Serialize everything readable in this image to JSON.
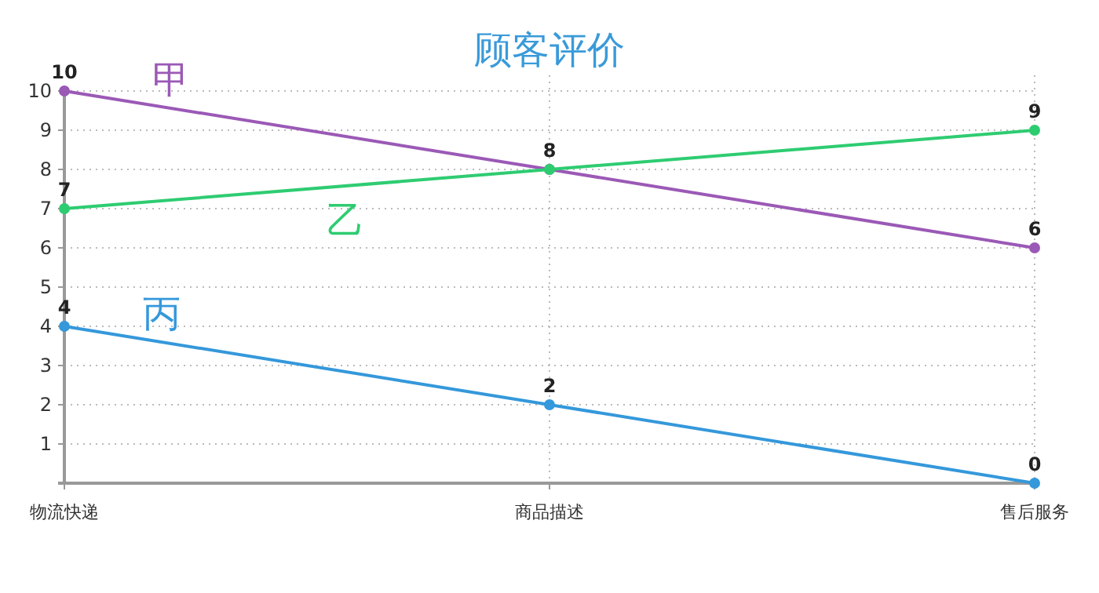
{
  "chart_data": {
    "type": "line",
    "title": "顾客评价",
    "categories": [
      "物流快递",
      "商品描述",
      "售后服务"
    ],
    "series": [
      {
        "name": "甲",
        "color": "#9b59b6",
        "values": [
          10,
          8,
          6
        ],
        "value_labels": [
          "10",
          "8",
          "6"
        ]
      },
      {
        "name": "乙",
        "color": "#2ecc71",
        "values": [
          7,
          8,
          9
        ],
        "value_labels": [
          "7",
          null,
          "9"
        ]
      },
      {
        "name": "丙",
        "color": "#3498db",
        "values": [
          4,
          2,
          0
        ],
        "value_labels": [
          "4",
          "2",
          "0"
        ]
      }
    ],
    "ylim": [
      0,
      10
    ],
    "yticks": [
      1,
      2,
      3,
      4,
      5,
      6,
      7,
      8,
      9,
      10
    ],
    "grid": true,
    "marker": "circle"
  }
}
